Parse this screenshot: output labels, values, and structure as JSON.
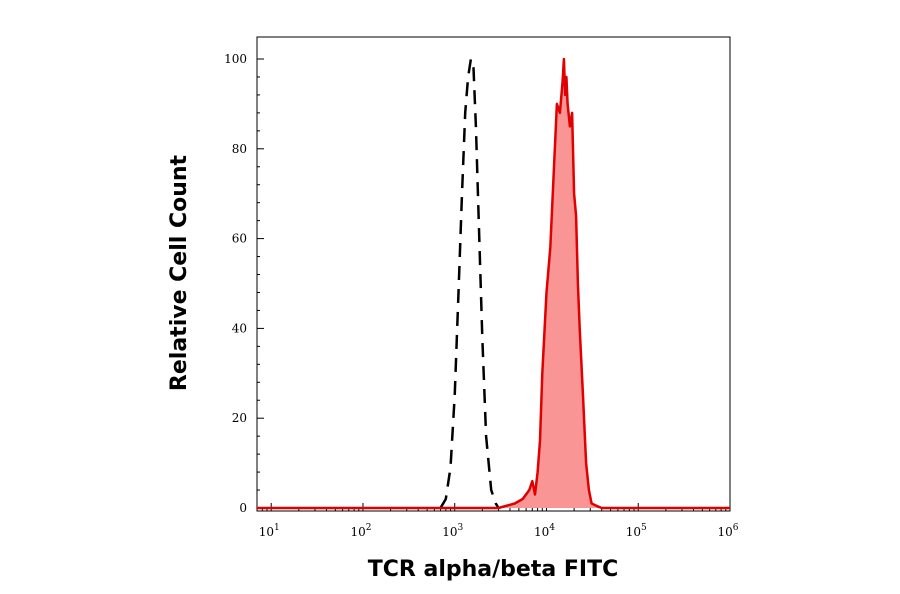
{
  "chart_data": {
    "type": "area",
    "xlabel": "TCR alpha/beta FITC",
    "ylabel": "Relative Cell Count",
    "x_scale": "log",
    "xlim": [
      7,
      1000000
    ],
    "ylim": [
      0,
      105
    ],
    "x_ticks": [
      {
        "base": "10",
        "exp": "1",
        "value": 10
      },
      {
        "base": "10",
        "exp": "2",
        "value": 100
      },
      {
        "base": "10",
        "exp": "3",
        "value": 1000
      },
      {
        "base": "10",
        "exp": "4",
        "value": 10000
      },
      {
        "base": "10",
        "exp": "5",
        "value": 100000
      },
      {
        "base": "10",
        "exp": "6",
        "value": 1000000
      }
    ],
    "y_ticks": [
      "0",
      "20",
      "40",
      "60",
      "80",
      "100"
    ],
    "grid": false,
    "legend": "none",
    "series": [
      {
        "style": "dashed",
        "color": "#000000",
        "fill": "none",
        "x": [
          700,
          800,
          900,
          1000,
          1100,
          1200,
          1300,
          1400,
          1500,
          1600,
          1700,
          1800,
          2000,
          2200,
          2500,
          2800,
          3000
        ],
        "y": [
          0,
          2,
          9,
          25,
          48,
          70,
          88,
          96,
          100,
          98,
          85,
          68,
          38,
          16,
          4,
          1,
          0
        ]
      },
      {
        "style": "solid",
        "color": "#e00000",
        "fill": "#f99595",
        "x": [
          7,
          3000,
          4500,
          5500,
          6500,
          7000,
          7500,
          8000,
          8500,
          9000,
          10000,
          11000,
          12000,
          13000,
          14000,
          15000,
          15500,
          16000,
          16500,
          17000,
          18000,
          19000,
          20000,
          21000,
          22000,
          23000,
          25000,
          27000,
          29000,
          31000,
          35000,
          40000,
          1000000
        ],
        "y": [
          0,
          0,
          1,
          2,
          4,
          6,
          3,
          8,
          15,
          30,
          48,
          58,
          75,
          90,
          88,
          95,
          100,
          92,
          96,
          90,
          85,
          88,
          70,
          65,
          50,
          40,
          25,
          10,
          4,
          1,
          0.5,
          0,
          0
        ]
      }
    ]
  }
}
